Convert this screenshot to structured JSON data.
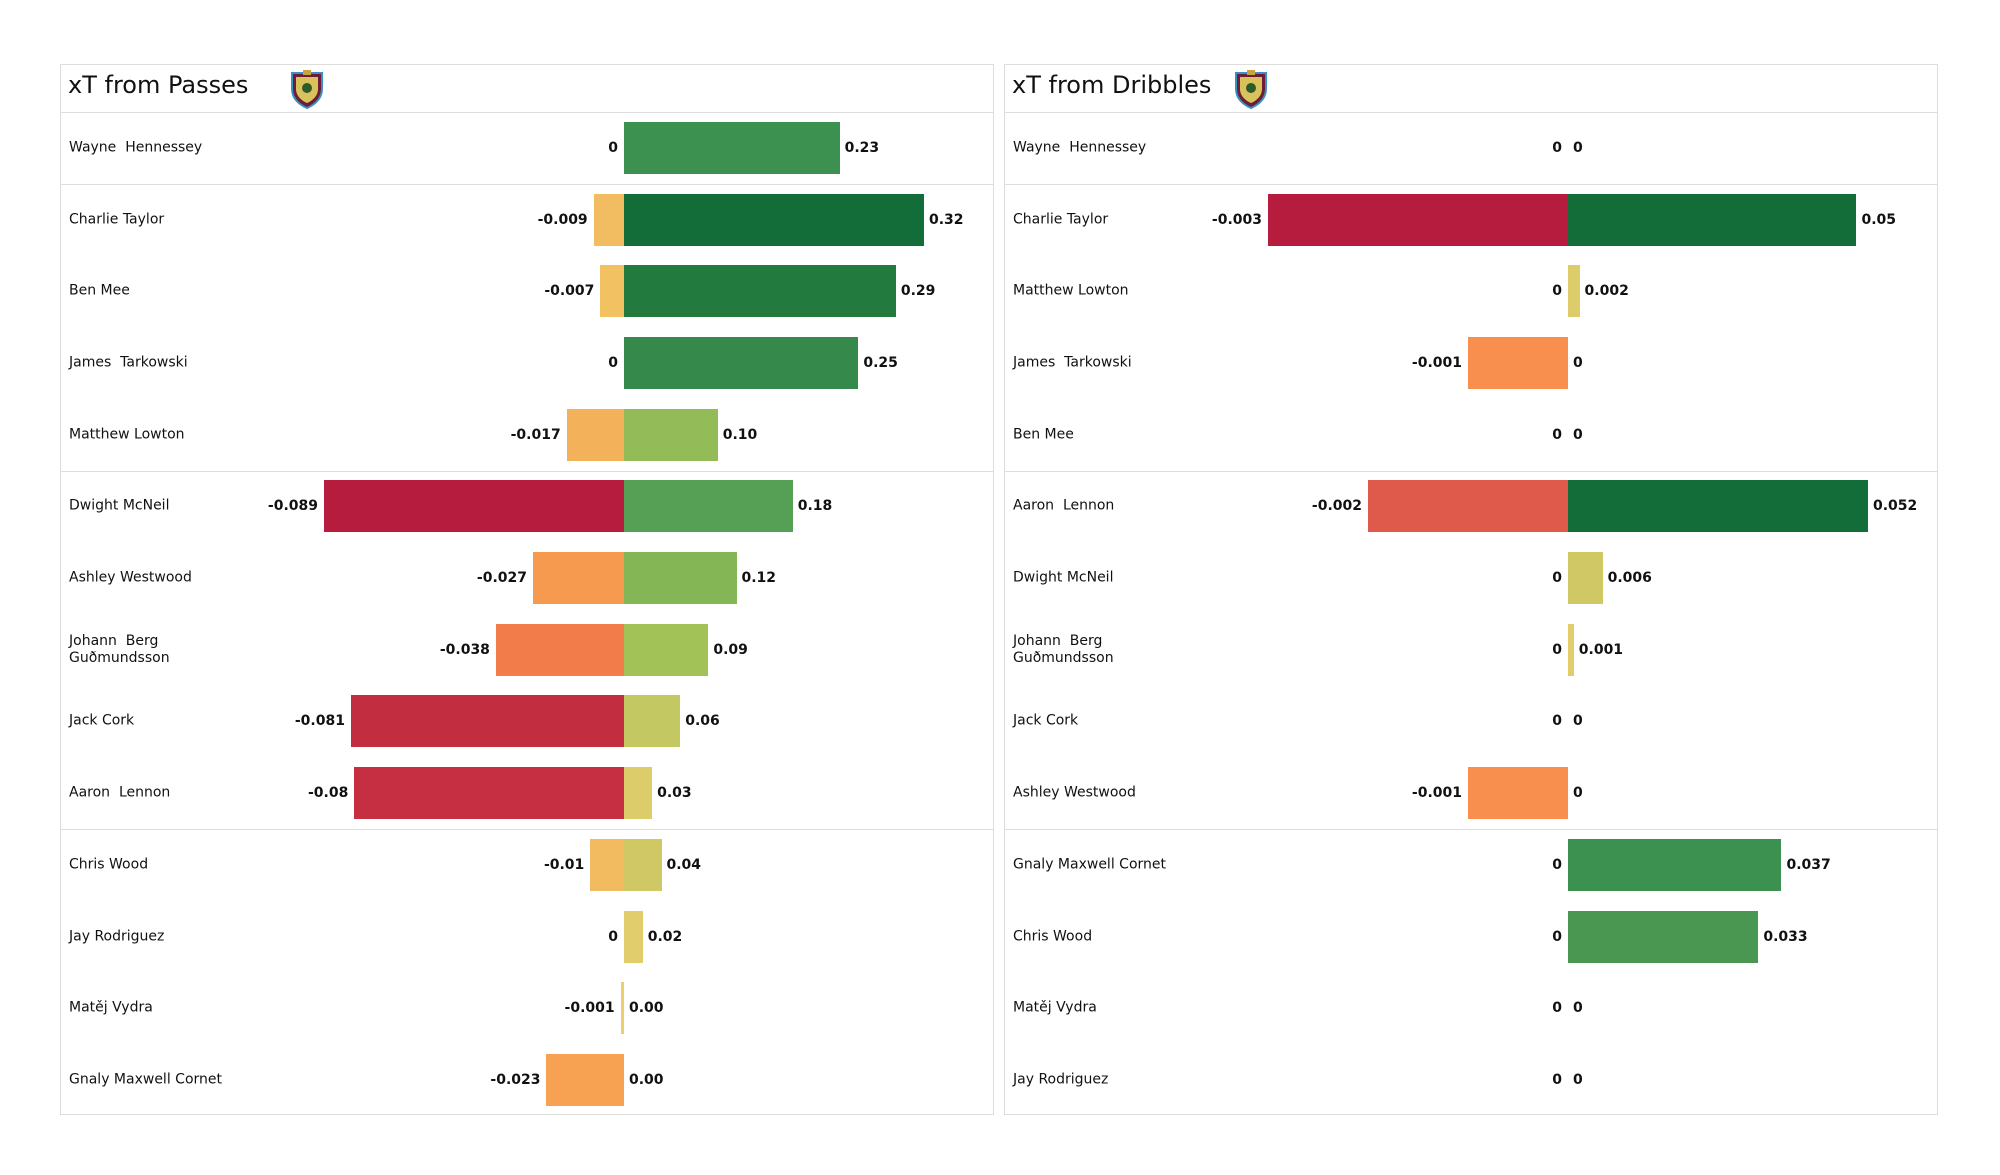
{
  "chart_data": [
    {
      "type": "diverging-bar",
      "title": "xT from Passes",
      "categories": [
        "Wayne  Hennessey",
        "Charlie Taylor",
        "Ben Mee",
        "James  Tarkowski",
        "Matthew Lowton",
        "Dwight McNeil",
        "Ashley Westwood",
        "Johann  Berg Guðmundsson",
        "Jack Cork",
        "Aaron  Lennon",
        "Chris Wood",
        "Jay Rodriguez",
        "Matěj Vydra",
        "Gnaly Maxwell Cornet"
      ],
      "series": [
        {
          "values": [
            0,
            -0.009,
            -0.007,
            0,
            -0.017,
            -0.089,
            -0.027,
            -0.038,
            -0.081,
            -0.08,
            -0.01,
            0,
            -0.001,
            -0.023
          ],
          "colors": [
            "#e8d070",
            "#f1bd60",
            "#f2c262",
            "#e8d070",
            "#f3b25a",
            "#b51c3e",
            "#f59a4e",
            "#f27d4b",
            "#c32d40",
            "#c52f41",
            "#f2bb5f",
            "#e8d070",
            "#ecce6a",
            "#f6a252"
          ]
        },
        {
          "values": [
            0.23,
            0.32,
            0.29,
            0.25,
            0.1,
            0.18,
            0.12,
            0.09,
            0.06,
            0.03,
            0.04,
            0.02,
            0,
            0
          ],
          "value_labels": [
            "0.23",
            "0.32",
            "0.29",
            "0.25",
            "0.10",
            "0.18",
            "0.12",
            "0.09",
            "0.06",
            "0.03",
            "0.04",
            "0.02",
            "0.00",
            "0.00"
          ],
          "colors": [
            "#3d9150",
            "#136d38",
            "#237a3f",
            "#34894b",
            "#93bb58",
            "#55a055",
            "#85b656",
            "#a2c258",
            "#c4c862",
            "#dccc6a",
            "#d0c865",
            "#e2cd6c",
            "#e8d070",
            "#e8d070"
          ]
        }
      ]
    },
    {
      "type": "diverging-bar",
      "title": "xT from Dribbles",
      "categories": [
        "Wayne  Hennessey",
        "Charlie Taylor",
        "Matthew Lowton",
        "James  Tarkowski",
        "Ben Mee",
        "Aaron  Lennon",
        "Dwight McNeil",
        "Johann  Berg Guðmundsson",
        "Jack Cork",
        "Ashley Westwood",
        "Gnaly Maxwell Cornet",
        "Chris Wood",
        "Matěj Vydra",
        "Jay Rodriguez"
      ],
      "series": [
        {
          "values": [
            0,
            -0.003,
            0,
            -0.001,
            0,
            -0.002,
            0,
            0,
            0,
            -0.001,
            0,
            0,
            0,
            0
          ],
          "colors": [
            "#e8d070",
            "#b51c3e",
            "#e8d070",
            "#f98f4f",
            "#e8d070",
            "#e05a4b",
            "#e8d070",
            "#e8d070",
            "#e8d070",
            "#f98f4f",
            "#e8d070",
            "#e8d070",
            "#e8d070",
            "#e8d070"
          ]
        },
        {
          "values": [
            0,
            0.05,
            0.002,
            0,
            0,
            0.052,
            0.006,
            0.001,
            0,
            0,
            0.037,
            0.033,
            0,
            0
          ],
          "colors": [
            "#e8d070",
            "#136d38",
            "#dccc6a",
            "#e8d070",
            "#e8d070",
            "#136d38",
            "#d0c865",
            "#e2cd6c",
            "#e8d070",
            "#e8d070",
            "#3d9150",
            "#4a9752",
            "#e8d070",
            "#e8d070"
          ]
        }
      ]
    }
  ]
}
